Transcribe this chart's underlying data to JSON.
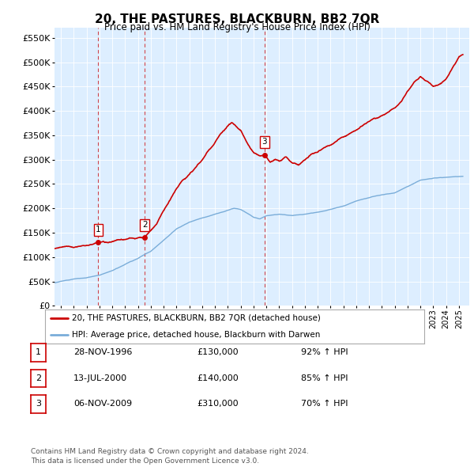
{
  "title": "20, THE PASTURES, BLACKBURN, BB2 7QR",
  "subtitle": "Price paid vs. HM Land Registry's House Price Index (HPI)",
  "ylim": [
    0,
    570000
  ],
  "yticks": [
    0,
    50000,
    100000,
    150000,
    200000,
    250000,
    300000,
    350000,
    400000,
    450000,
    500000,
    550000
  ],
  "xlim_start": 1993.5,
  "xlim_end": 2025.8,
  "hpi_color": "#7aadd9",
  "price_color": "#cc0000",
  "bg_color": "#ddeeff",
  "sale_points": [
    {
      "date_num": 1996.91,
      "price": 130000,
      "label": "1"
    },
    {
      "date_num": 2000.53,
      "price": 140000,
      "label": "2"
    },
    {
      "date_num": 2009.84,
      "price": 310000,
      "label": "3"
    }
  ],
  "sale_vlines": [
    1996.91,
    2000.53,
    2009.84
  ],
  "table_rows": [
    [
      "1",
      "28-NOV-1996",
      "£130,000",
      "92% ↑ HPI"
    ],
    [
      "2",
      "13-JUL-2000",
      "£140,000",
      "85% ↑ HPI"
    ],
    [
      "3",
      "06-NOV-2009",
      "£310,000",
      "70% ↑ HPI"
    ]
  ],
  "legend_entries": [
    "20, THE PASTURES, BLACKBURN, BB2 7QR (detached house)",
    "HPI: Average price, detached house, Blackburn with Darwen"
  ],
  "footnote": "Contains HM Land Registry data © Crown copyright and database right 2024.\nThis data is licensed under the Open Government Licence v3.0."
}
